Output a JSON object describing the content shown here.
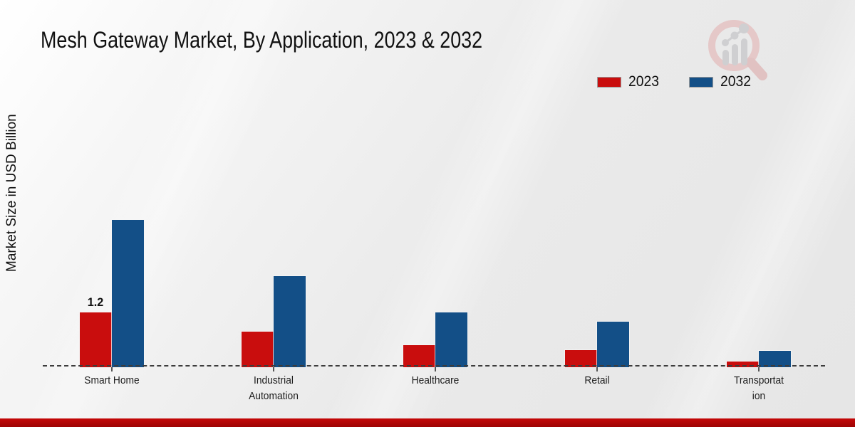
{
  "page": {
    "title": "Mesh Gateway Market, By Application, 2023 & 2032",
    "footer_accent_color": "#b30505",
    "logo_icon": "magnifier-trend-chart-logo"
  },
  "legend": {
    "items": [
      {
        "label": "2023",
        "color": "#c90d0d"
      },
      {
        "label": "2032",
        "color": "#134f87"
      }
    ]
  },
  "chart_data": {
    "type": "bar",
    "title": "Mesh Gateway Market, By Application, 2023 & 2032",
    "xlabel": "",
    "ylabel": "Market Size in USD Billion",
    "categories": [
      "Smart Home",
      "Industrial Automation",
      "Healthcare",
      "Retail",
      "Transportation"
    ],
    "category_display_labels": [
      "Smart Home",
      "Industrial\nAutomation",
      "Healthcare",
      "Retail",
      "Transportat\nion"
    ],
    "series": [
      {
        "name": "2023",
        "color": "#c90d0d",
        "values": [
          1.2,
          0.78,
          0.48,
          0.37,
          0.12
        ]
      },
      {
        "name": "2032",
        "color": "#134f87",
        "values": [
          3.22,
          2.0,
          1.2,
          1.0,
          0.36
        ]
      }
    ],
    "data_labels": [
      {
        "series": "2023",
        "category": "Smart Home",
        "text": "1.2"
      }
    ],
    "axis": {
      "baseline_style": "dashed",
      "gridlines": false,
      "y_axis_ticks_visible": false,
      "ylim": [
        0,
        3.5
      ]
    },
    "legend_position": "top-right"
  }
}
